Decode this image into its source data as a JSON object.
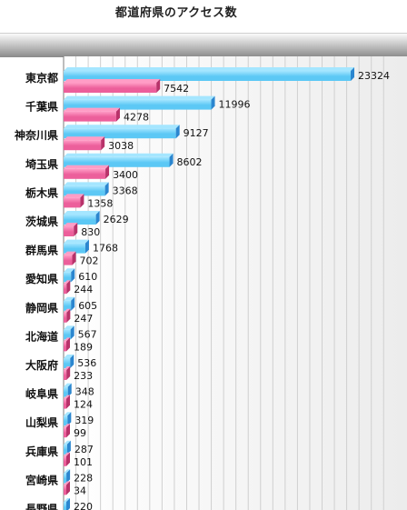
{
  "title": "都道府県のアクセス数",
  "colors": {
    "series_a": "#5cc8f5",
    "series_a_light": "#a5e6ff",
    "series_a_dark": "#2b86cf",
    "series_b": "#ec5f9b",
    "series_b_light": "#ff9dc6",
    "series_b_dark": "#b8326a",
    "grid": "#cfcfcf",
    "axis": "#7b7b7b"
  },
  "chart_data": {
    "type": "bar",
    "orientation": "horizontal",
    "grid": true,
    "categories": [
      "東京都",
      "千葉県",
      "神奈川県",
      "埼玉県",
      "栃木県",
      "茨城県",
      "群馬県",
      "愛知県",
      "静岡県",
      "北海道",
      "大阪府",
      "岐阜県",
      "山梨県",
      "兵庫県",
      "宮崎県",
      "長野県"
    ],
    "series": [
      {
        "values": [
          23324,
          11996,
          9127,
          8602,
          3368,
          2629,
          1768,
          610,
          605,
          567,
          536,
          348,
          319,
          287,
          228,
          220
        ]
      },
      {
        "values": [
          7542,
          4278,
          3038,
          3400,
          1358,
          830,
          702,
          244,
          247,
          189,
          233,
          124,
          99,
          101,
          34,
          null
        ]
      }
    ],
    "xlim": [
      0,
      26000
    ]
  }
}
